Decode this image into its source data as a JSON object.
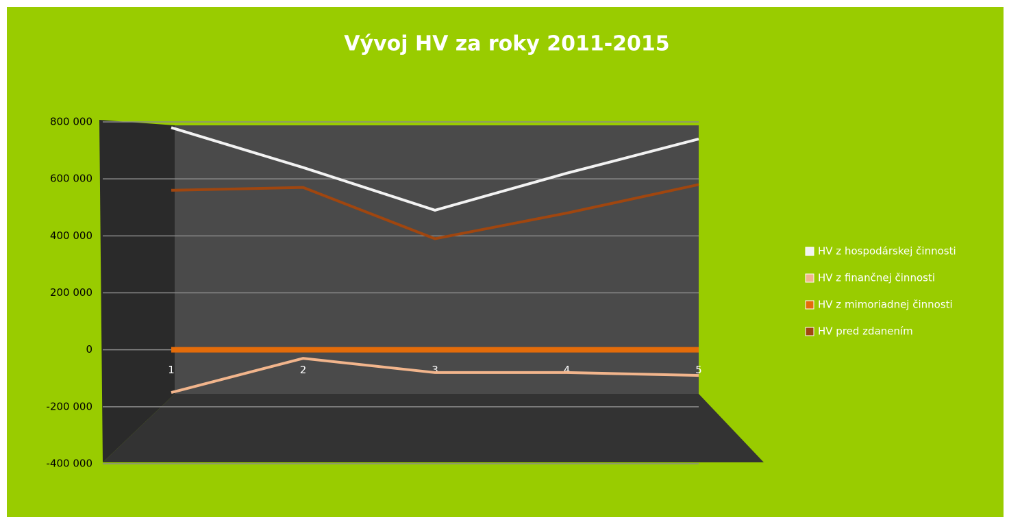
{
  "chart_data": {
    "type": "line",
    "title": "Vývoj HV za roky 2011-2015",
    "categories": [
      "1",
      "2",
      "3",
      "4",
      "5"
    ],
    "series": [
      {
        "name": "HV z hospodárskej činnosti",
        "color": "#f2f2f2",
        "values": [
          780000,
          640000,
          490000,
          620000,
          740000
        ]
      },
      {
        "name": "HV z finančnej činnosti",
        "color": "#f2b58c",
        "values": [
          -150000,
          -30000,
          -80000,
          -80000,
          -90000
        ]
      },
      {
        "name": "HV z mimoriadnej činnosti",
        "color": "#e46c0a",
        "values": [
          0,
          0,
          0,
          0,
          0
        ]
      },
      {
        "name": "HV pred zdanením",
        "color": "#a0460f",
        "values": [
          560000,
          570000,
          390000,
          480000,
          580000
        ]
      }
    ],
    "ylim": [
      -400000,
      800000
    ],
    "yticks": [
      {
        "value": -400000,
        "label": "-400 000"
      },
      {
        "value": -200000,
        "label": "-200 000"
      },
      {
        "value": 0,
        "label": "0"
      },
      {
        "value": 200000,
        "label": "200 000"
      },
      {
        "value": 400000,
        "label": "400 000"
      },
      {
        "value": 600000,
        "label": "600 000"
      },
      {
        "value": 800000,
        "label": "800 000"
      }
    ],
    "grid": true,
    "legend": "right"
  }
}
